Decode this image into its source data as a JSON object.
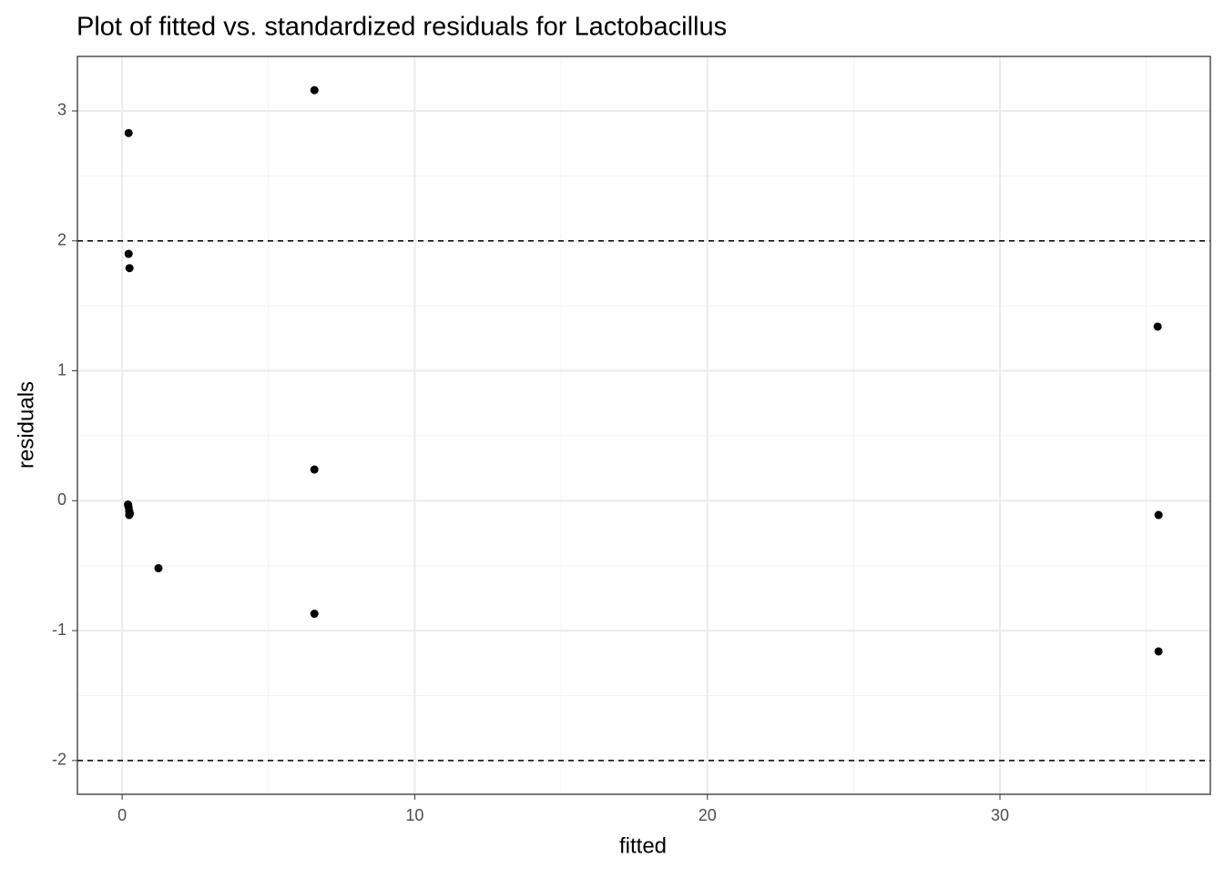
{
  "chart_data": {
    "type": "scatter",
    "title": "Plot of fitted vs. standardized residuals for Lactobacillus",
    "x_label": "fitted",
    "y_label": "residuals",
    "x": [
      0.22,
      6.57,
      0.22,
      0.25,
      35.39,
      6.57,
      0.2,
      0.22,
      0.24,
      0.26,
      0.24,
      1.24,
      6.57,
      35.42,
      35.42
    ],
    "y": [
      2.83,
      3.16,
      1.9,
      1.79,
      1.34,
      0.24,
      -0.03,
      -0.05,
      -0.08,
      -0.1,
      -0.11,
      -0.52,
      -0.87,
      -0.11,
      -1.16
    ],
    "color": "#000000",
    "xlim": [
      -1.53,
      37.19
    ],
    "ylim": [
      -2.26,
      3.42
    ],
    "xticks": [
      0,
      10,
      20,
      30
    ],
    "yticks": [
      -2,
      -1,
      0,
      1,
      2,
      3
    ],
    "xminor": [
      5,
      15,
      25,
      35
    ],
    "yminor": [
      -1.5,
      -0.5,
      0.5,
      1.5,
      2.5
    ],
    "hlines": [
      2,
      -2
    ],
    "grid": true
  }
}
